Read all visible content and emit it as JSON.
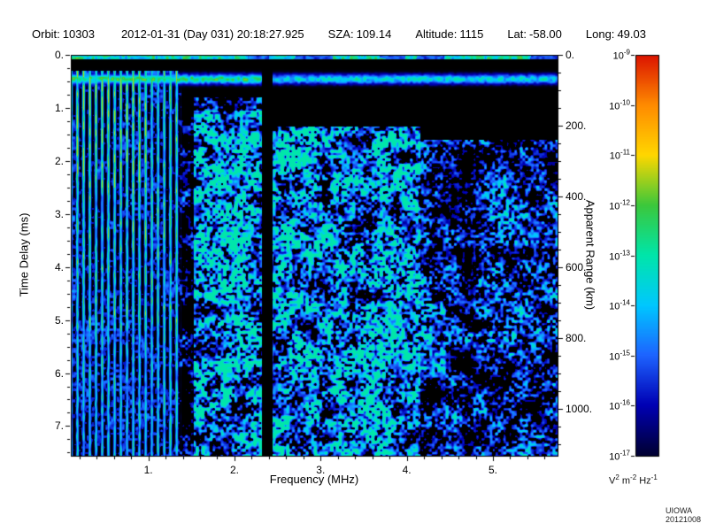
{
  "header": {
    "fields": [
      {
        "label": "Orbit:",
        "value": "10303"
      },
      {
        "label": "",
        "value": "2012-01-31 (Day 031) 20:18:27.925"
      },
      {
        "label": "SZA:",
        "value": "109.14"
      },
      {
        "label": "Altitude:",
        "value": "1115"
      },
      {
        "label": "Lat:",
        "value": "-58.00"
      },
      {
        "label": "Long:",
        "value": "49.03"
      }
    ]
  },
  "footer": {
    "credit": "UIOWA 20121008"
  },
  "chart_data": {
    "type": "heatmap",
    "title": "",
    "xlabel": "Frequency (MHz)",
    "ylabel": "Time Delay (ms)",
    "y2label": "Apparent Range (km)",
    "plot_bg": "#000000",
    "xlim": [
      0.1,
      5.75
    ],
    "ylim": [
      0,
      7.56
    ],
    "y2lim": [
      0,
      1133
    ],
    "x_tick_labels": [
      "1.",
      "2.",
      "3.",
      "4.",
      "5."
    ],
    "x_tick_values": [
      1,
      2,
      3,
      4,
      5
    ],
    "x_minor_step": 0.2,
    "y_tick_labels": [
      "0.",
      "1.",
      "2.",
      "3.",
      "4.",
      "5.",
      "6.",
      "7."
    ],
    "y_tick_values": [
      0,
      1,
      2,
      3,
      4,
      5,
      6,
      7
    ],
    "y_minor_step": 0.25,
    "y2_tick_labels": [
      "0.",
      "200.",
      "400.",
      "600.",
      "800.",
      "1000."
    ],
    "y2_tick_values": [
      0,
      200,
      400,
      600,
      800,
      1000
    ],
    "y2_minor_step": 50,
    "colorbar": {
      "scale": "log",
      "tick_base": "10",
      "tick_exponents": [
        "-9",
        "-10",
        "-11",
        "-12",
        "-13",
        "-14",
        "-15",
        "-16",
        "-17"
      ],
      "units": [
        {
          "b": "V",
          "s": "2"
        },
        {
          "b": " m",
          "s": "-2"
        },
        {
          "b": " Hz",
          "s": "-1"
        }
      ],
      "gradient_top_to_bottom": [
        "#dc1400",
        "#ff8c00",
        "#ffd700",
        "#3cc83c",
        "#00e6aa",
        "#00c8ff",
        "#1e64ff",
        "#0000b4",
        "#000032"
      ]
    },
    "features": {
      "top_edge_line": {
        "delay_ms": [
          0,
          0.07
        ],
        "desc": "thin blue-green line across all frequencies at zero delay"
      },
      "surface_band": {
        "delay_ms": [
          0.3,
          0.6
        ],
        "desc": "bright horizontal echo band across all frequencies, green-cyan below 2.3 MHz, blue-cyan above"
      },
      "plasma_harmonic_stripes": {
        "freq_mhz": [
          0.1,
          1.38
        ],
        "period_mhz": 0.072,
        "desc": "vertical green-cyan electron plasma harmonic stripes over full delay range, brightest yellow-green below 1.0 MHz at 0.4-2.5 ms"
      },
      "quiet_column": {
        "freq_mhz": [
          2.31,
          2.44
        ],
        "desc": "dark vertical gap with no signal near 2.35 MHz"
      },
      "noise_speckle": {
        "freq_mhz": [
          1.5,
          5.75
        ],
        "desc": "diffuse blue speckle, densest 1.5-4 MHz for delays greater than 1.2 ms, sparser above 4 MHz and in top-right region"
      }
    }
  }
}
